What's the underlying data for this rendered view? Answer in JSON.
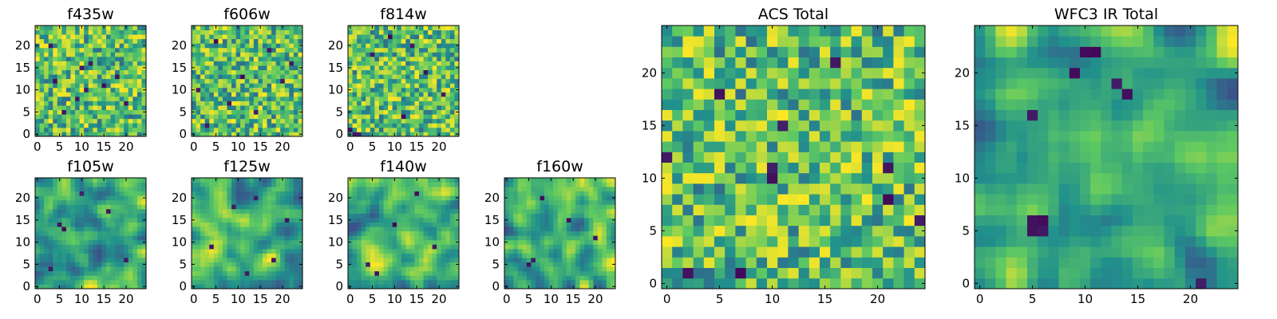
{
  "figure": {
    "colormap": "viridis",
    "colormap_stops": [
      "#440154",
      "#3b528b",
      "#21918c",
      "#5ec962",
      "#fde725"
    ],
    "background": "#ffffff"
  },
  "chart_data": [
    {
      "id": "f435w",
      "type": "heatmap",
      "title": "f435w",
      "grid_size": [
        25,
        25
      ],
      "xlim": [
        0,
        24
      ],
      "ylim": [
        0,
        24
      ],
      "xticks": [
        "0",
        "5",
        "10",
        "15",
        "20"
      ],
      "yticks": [
        "0",
        "5",
        "10",
        "15",
        "20"
      ],
      "texture": "grainy",
      "seed": 11,
      "dark_cells": [
        [
          12,
          16
        ],
        [
          9,
          8
        ],
        [
          15,
          11
        ],
        [
          11,
          10
        ],
        [
          6,
          5
        ],
        [
          4,
          12
        ],
        [
          18,
          13
        ],
        [
          20,
          7
        ],
        [
          10,
          15
        ],
        [
          3,
          20
        ]
      ]
    },
    {
      "id": "f606w",
      "type": "heatmap",
      "title": "f606w",
      "grid_size": [
        25,
        25
      ],
      "xlim": [
        0,
        24
      ],
      "ylim": [
        0,
        24
      ],
      "xticks": [
        "0",
        "5",
        "10",
        "15",
        "20"
      ],
      "yticks": [
        "0",
        "5",
        "10",
        "15",
        "20"
      ],
      "texture": "grainy",
      "seed": 23,
      "dark_cells": [
        [
          11,
          13
        ],
        [
          17,
          19
        ],
        [
          3,
          2
        ],
        [
          8,
          7
        ],
        [
          20,
          12
        ],
        [
          14,
          5
        ],
        [
          5,
          21
        ],
        [
          1,
          10
        ],
        [
          22,
          16
        ]
      ]
    },
    {
      "id": "f814w",
      "type": "heatmap",
      "title": "f814w",
      "grid_size": [
        25,
        25
      ],
      "xlim": [
        0,
        24
      ],
      "ylim": [
        0,
        24
      ],
      "xticks": [
        "0",
        "5",
        "10",
        "15",
        "20"
      ],
      "yticks": [
        "0",
        "5",
        "10",
        "15",
        "20"
      ],
      "texture": "grainy",
      "seed": 37,
      "dark_cells": [
        [
          0,
          1
        ],
        [
          1,
          0
        ],
        [
          2,
          0
        ],
        [
          5,
          18
        ],
        [
          12,
          4
        ],
        [
          17,
          14
        ],
        [
          21,
          9
        ],
        [
          9,
          22
        ],
        [
          14,
          20
        ]
      ]
    },
    {
      "id": "f105w",
      "type": "heatmap",
      "title": "f105w",
      "grid_size": [
        25,
        25
      ],
      "xlim": [
        0,
        24
      ],
      "ylim": [
        0,
        24
      ],
      "xticks": [
        "0",
        "5",
        "10",
        "15",
        "20"
      ],
      "yticks": [
        "0",
        "5",
        "10",
        "15",
        "20"
      ],
      "texture": "smooth",
      "seed": 41,
      "dark_cells": [
        [
          5,
          14
        ],
        [
          6,
          13
        ],
        [
          3,
          4
        ],
        [
          20,
          6
        ],
        [
          16,
          17
        ],
        [
          10,
          21
        ]
      ]
    },
    {
      "id": "f125w",
      "type": "heatmap",
      "title": "f125w",
      "grid_size": [
        25,
        25
      ],
      "xlim": [
        0,
        24
      ],
      "ylim": [
        0,
        24
      ],
      "xticks": [
        "0",
        "5",
        "10",
        "15",
        "20"
      ],
      "yticks": [
        "0",
        "5",
        "10",
        "15",
        "20"
      ],
      "texture": "smooth",
      "seed": 53,
      "dark_cells": [
        [
          9,
          18
        ],
        [
          14,
          20
        ],
        [
          4,
          9
        ],
        [
          18,
          6
        ],
        [
          12,
          3
        ],
        [
          21,
          15
        ]
      ]
    },
    {
      "id": "f140w",
      "type": "heatmap",
      "title": "f140w",
      "grid_size": [
        25,
        25
      ],
      "xlim": [
        0,
        24
      ],
      "ylim": [
        0,
        24
      ],
      "xticks": [
        "0",
        "5",
        "10",
        "15",
        "20"
      ],
      "yticks": [
        "0",
        "5",
        "10",
        "15",
        "20"
      ],
      "texture": "smooth",
      "seed": 67,
      "dark_cells": [
        [
          15,
          21
        ],
        [
          4,
          5
        ],
        [
          6,
          3
        ],
        [
          19,
          9
        ],
        [
          10,
          14
        ]
      ]
    },
    {
      "id": "f160w",
      "type": "heatmap",
      "title": "f160w",
      "grid_size": [
        25,
        25
      ],
      "xlim": [
        0,
        24
      ],
      "ylim": [
        0,
        24
      ],
      "xticks": [
        "0",
        "5",
        "10",
        "15",
        "20"
      ],
      "yticks": [
        "0",
        "5",
        "10",
        "15",
        "20"
      ],
      "texture": "smooth",
      "seed": 79,
      "dark_cells": [
        [
          5,
          5
        ],
        [
          6,
          6
        ],
        [
          8,
          20
        ],
        [
          20,
          11
        ],
        [
          14,
          15
        ]
      ]
    },
    {
      "id": "acs_total",
      "type": "heatmap",
      "title": "ACS Total",
      "grid_size": [
        25,
        25
      ],
      "xlim": [
        0,
        24
      ],
      "ylim": [
        0,
        24
      ],
      "xticks": [
        "0",
        "5",
        "10",
        "15",
        "20"
      ],
      "yticks": [
        "0",
        "5",
        "10",
        "15",
        "20"
      ],
      "texture": "grainy",
      "seed": 97,
      "dark_cells": [
        [
          11,
          15
        ],
        [
          10,
          10
        ],
        [
          10,
          11
        ],
        [
          21,
          11
        ],
        [
          21,
          8
        ],
        [
          24,
          6
        ],
        [
          2,
          1
        ],
        [
          0,
          12
        ],
        [
          16,
          21
        ],
        [
          7,
          1
        ],
        [
          5,
          18
        ]
      ]
    },
    {
      "id": "wfc3_ir_total",
      "type": "heatmap",
      "title": "WFC3 IR Total",
      "grid_size": [
        25,
        25
      ],
      "xlim": [
        0,
        24
      ],
      "ylim": [
        0,
        24
      ],
      "xticks": [
        "0",
        "5",
        "10",
        "15",
        "20"
      ],
      "yticks": [
        "0",
        "5",
        "10",
        "15",
        "20"
      ],
      "texture": "smooth",
      "seed": 113,
      "dark_cells": [
        [
          5,
          5
        ],
        [
          6,
          5
        ],
        [
          5,
          6
        ],
        [
          6,
          6
        ],
        [
          5,
          16
        ],
        [
          11,
          22
        ],
        [
          10,
          22
        ],
        [
          13,
          19
        ],
        [
          14,
          18
        ],
        [
          21,
          0
        ],
        [
          9,
          20
        ]
      ]
    }
  ]
}
